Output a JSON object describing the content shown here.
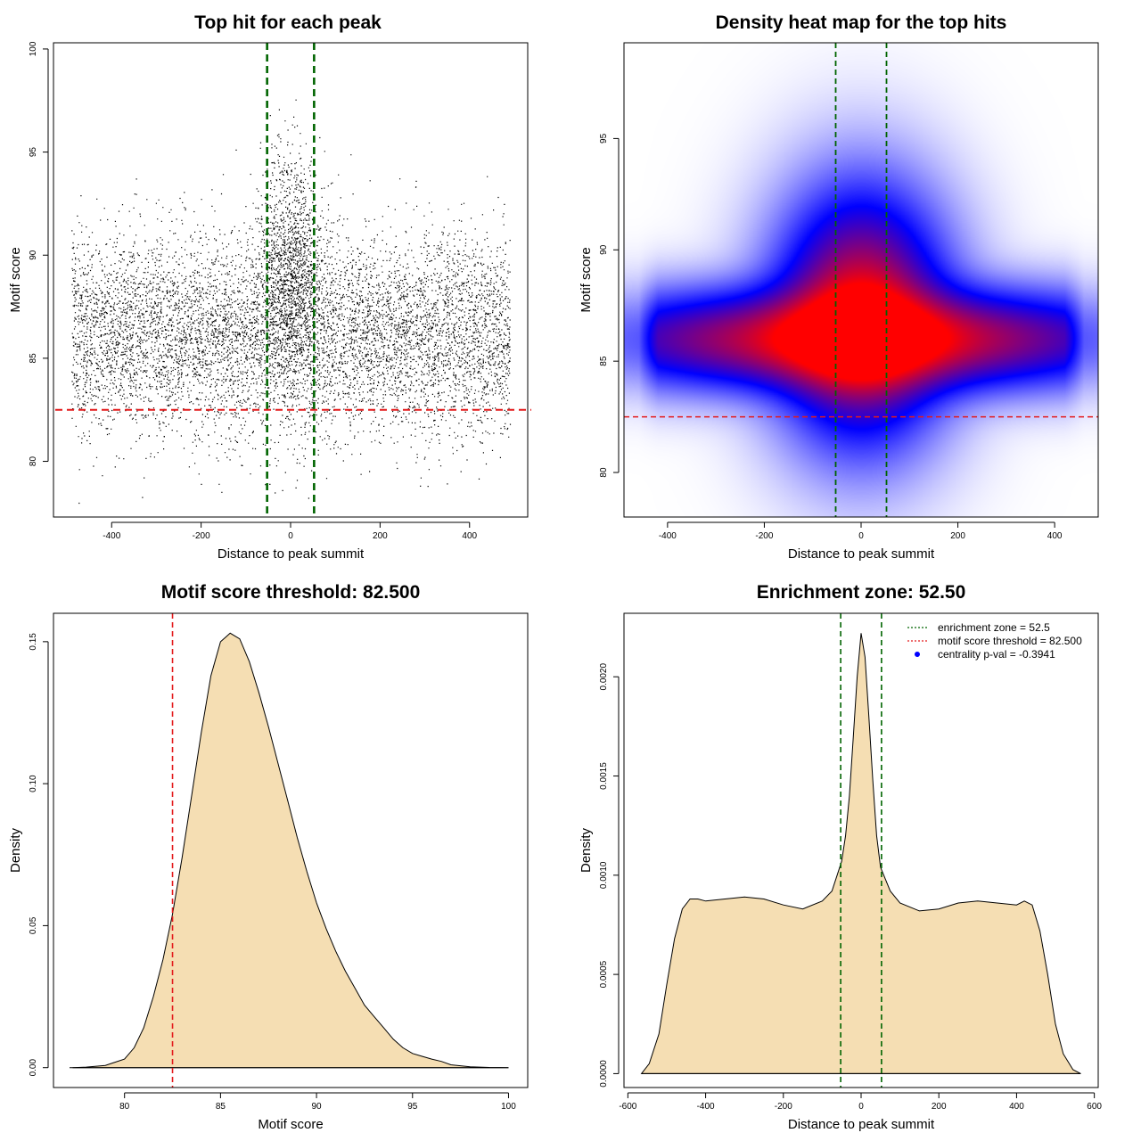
{
  "colors": {
    "red": "#e31a1c",
    "green": "#006400",
    "blue": "#0000ff",
    "wheat": "#f5deb3",
    "black": "#000000"
  },
  "chart_data": [
    {
      "id": "scatter",
      "type": "scatter",
      "title": "Top hit for each peak",
      "xlabel": "Distance to peak summit",
      "ylabel": "Motif score",
      "xlim": [
        -530,
        530
      ],
      "ylim": [
        77.3,
        100.3
      ],
      "xticks": [
        -400,
        -200,
        0,
        200,
        400
      ],
      "yticks": [
        80,
        85,
        90,
        95,
        100
      ],
      "hline": 82.5,
      "vlines": [
        -52.5,
        52.5
      ],
      "point_count": 9000,
      "point_range_x": [
        -490,
        490
      ]
    },
    {
      "id": "heatmap",
      "type": "heatmap",
      "title": "Density heat map for the top hits",
      "xlabel": "Distance to peak summit",
      "ylabel": "Motif score",
      "xlim": [
        -490,
        490
      ],
      "ylim": [
        78,
        99.3
      ],
      "xticks": [
        -400,
        -200,
        0,
        200,
        400
      ],
      "yticks": [
        80,
        85,
        90,
        95
      ],
      "hline": 82.5,
      "vlines": [
        -52.5,
        52.5
      ],
      "bands": [
        {
          "x": 0,
          "y": 87,
          "sx": 100,
          "sy": 3.2,
          "w": 1.0
        },
        {
          "x": 0,
          "y": 86,
          "sx": 340,
          "sy": 1.3,
          "w": 1.0
        }
      ]
    },
    {
      "id": "score-density",
      "type": "area",
      "title": "Motif score threshold: 82.500",
      "xlabel": "Motif score",
      "ylabel": "Density",
      "xlim": [
        76.3,
        101.0
      ],
      "ylim": [
        -0.007,
        0.16
      ],
      "xticks": [
        80,
        85,
        90,
        95,
        100
      ],
      "yticks": [
        0.0,
        0.05,
        0.1,
        0.15
      ],
      "ytick_labels": [
        "0.00",
        "0.05",
        "0.10",
        "0.15"
      ],
      "vline": 82.5,
      "x": [
        77.3,
        78,
        79,
        80,
        80.5,
        81,
        81.5,
        82,
        82.5,
        83,
        83.5,
        84,
        84.5,
        85,
        85.5,
        86,
        86.5,
        87,
        87.5,
        88,
        88.5,
        89,
        89.5,
        90,
        90.5,
        91,
        91.5,
        92,
        92.5,
        93,
        93.5,
        94,
        94.5,
        95,
        95.5,
        96,
        96.5,
        97,
        98,
        99,
        100
      ],
      "values": [
        0.0,
        0.0002,
        0.0008,
        0.003,
        0.007,
        0.014,
        0.025,
        0.038,
        0.054,
        0.074,
        0.096,
        0.118,
        0.138,
        0.15,
        0.153,
        0.151,
        0.143,
        0.132,
        0.12,
        0.107,
        0.094,
        0.081,
        0.069,
        0.058,
        0.049,
        0.041,
        0.034,
        0.028,
        0.022,
        0.018,
        0.014,
        0.01,
        0.007,
        0.005,
        0.004,
        0.003,
        0.0022,
        0.001,
        0.0003,
        5e-05,
        0.0
      ]
    },
    {
      "id": "distance-density",
      "type": "area",
      "title": "Enrichment zone: 52.50",
      "xlabel": "Distance to peak summit",
      "ylabel": "Density",
      "xlim": [
        -610,
        610
      ],
      "ylim": [
        -7e-05,
        0.00232
      ],
      "xticks": [
        -600,
        -400,
        -200,
        0,
        200,
        400,
        600
      ],
      "yticks": [
        0.0,
        0.0005,
        0.001,
        0.0015,
        0.002
      ],
      "ytick_labels": [
        "0.0000",
        "0.0005",
        "0.0010",
        "0.0015",
        "0.0020"
      ],
      "vlines": [
        -52.5,
        52.5
      ],
      "x": [
        -565,
        -545,
        -520,
        -500,
        -480,
        -460,
        -440,
        -420,
        -400,
        -350,
        -300,
        -250,
        -200,
        -150,
        -100,
        -75,
        -50,
        -40,
        -30,
        -20,
        -10,
        0,
        10,
        20,
        30,
        40,
        50,
        75,
        100,
        150,
        200,
        250,
        300,
        350,
        400,
        420,
        440,
        460,
        480,
        500,
        520,
        545,
        565
      ],
      "values": [
        0.0,
        5e-05,
        0.0002,
        0.00045,
        0.00068,
        0.00083,
        0.00088,
        0.00088,
        0.00087,
        0.00088,
        0.00089,
        0.00088,
        0.00085,
        0.00083,
        0.00087,
        0.00092,
        0.00107,
        0.0012,
        0.0014,
        0.0017,
        0.002,
        0.00222,
        0.0021,
        0.0018,
        0.00148,
        0.0012,
        0.00104,
        0.00092,
        0.00086,
        0.00082,
        0.00083,
        0.00086,
        0.00087,
        0.00086,
        0.00085,
        0.00087,
        0.00085,
        0.00072,
        0.0005,
        0.00025,
        0.0001,
        2e-05,
        0.0
      ],
      "legend": [
        {
          "label": "enrichment zone = 52.5",
          "type": "dotted",
          "color": "#006400"
        },
        {
          "label": "motif score threshold = 82.500",
          "type": "dotted",
          "color": "#e31a1c"
        },
        {
          "label": "centrality p-val = -0.3941",
          "type": "point",
          "color": "#0000ff"
        }
      ],
      "legend_position": "top-right"
    }
  ]
}
